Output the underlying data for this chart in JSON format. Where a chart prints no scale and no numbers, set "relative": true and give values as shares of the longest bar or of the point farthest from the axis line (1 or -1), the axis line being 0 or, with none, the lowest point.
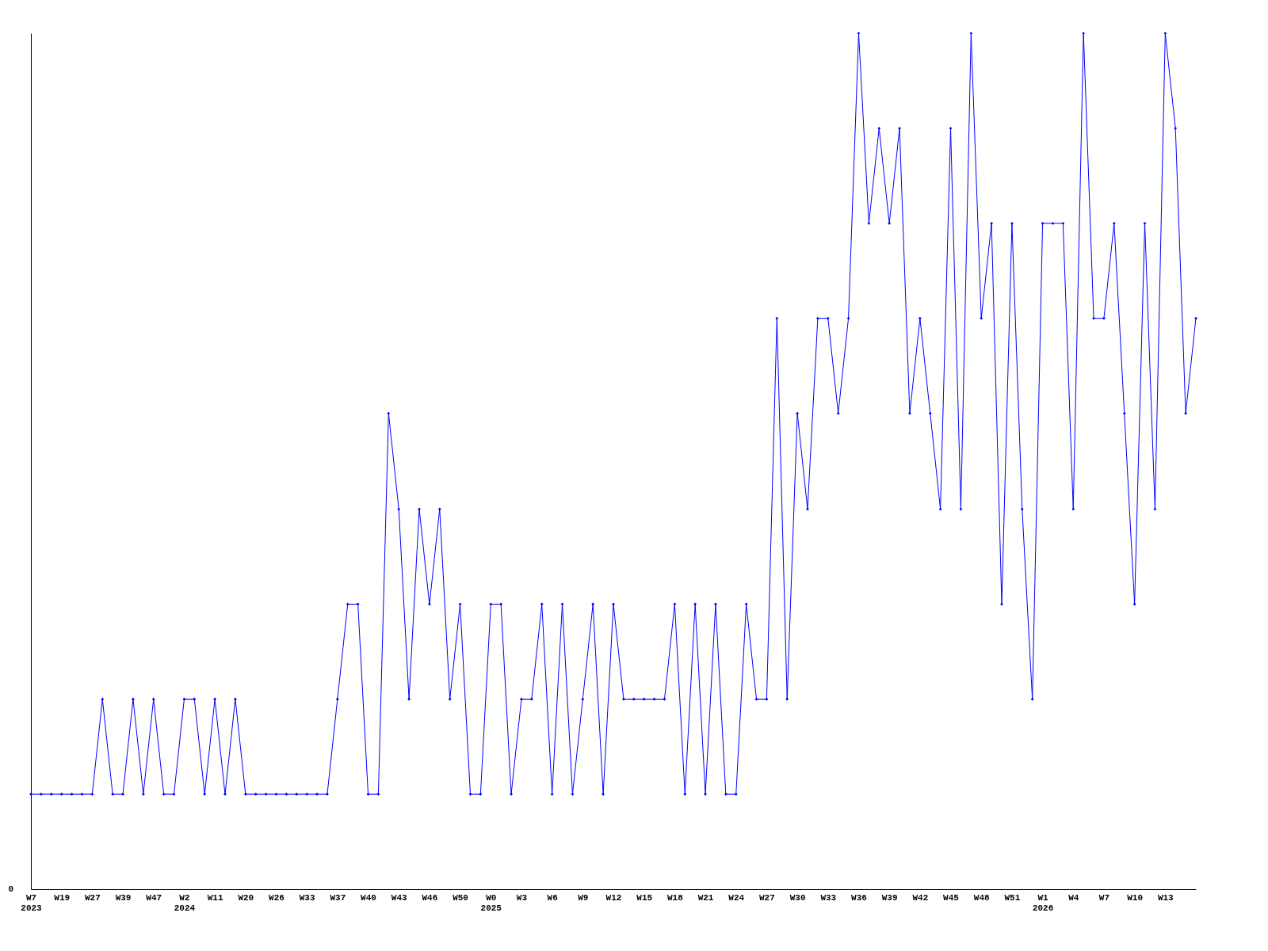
{
  "chart_data": {
    "type": "line",
    "relative": true,
    "color": "#0000ff",
    "marker": "diamond",
    "line_style": "solid",
    "grid": false,
    "annotations": [
      "0"
    ],
    "categories": [
      "W7\n2023",
      null,
      null,
      "W19",
      null,
      null,
      "W27",
      null,
      null,
      "W39",
      null,
      null,
      "W47",
      null,
      null,
      "W2\n2024",
      null,
      null,
      "W11",
      null,
      null,
      "W20",
      null,
      null,
      "W26",
      null,
      null,
      "W33",
      null,
      null,
      "W37",
      null,
      null,
      "W40",
      null,
      null,
      "W43",
      null,
      null,
      "W46",
      null,
      null,
      "W50",
      null,
      null,
      "W0\n2025",
      null,
      null,
      "W3",
      null,
      null,
      "W6",
      null,
      null,
      "W9",
      null,
      null,
      "W12",
      null,
      null,
      "W15",
      null,
      null,
      "W18",
      null,
      null,
      "W21",
      null,
      null,
      "W24",
      null,
      null,
      "W27",
      null,
      null,
      "W30",
      null,
      null,
      "W33",
      null,
      null,
      "W36",
      null,
      null,
      "W39",
      null,
      null,
      "W42",
      null,
      null,
      "W45",
      null,
      null,
      "W48",
      null,
      null,
      "W51",
      null,
      null,
      "W1\n2026",
      null,
      null,
      "W4",
      null,
      null,
      "W7",
      null,
      null,
      "W10",
      null,
      null,
      "W13",
      null,
      null,
      null
    ],
    "values": [
      0.111,
      0.111,
      0.111,
      0.111,
      0.111,
      0.111,
      0.111,
      0.222,
      0.111,
      0.111,
      0.222,
      0.111,
      0.222,
      0.111,
      0.111,
      0.222,
      0.222,
      0.111,
      0.222,
      0.111,
      0.222,
      0.111,
      0.111,
      0.111,
      0.111,
      0.111,
      0.111,
      0.111,
      0.111,
      0.111,
      0.222,
      0.333,
      0.333,
      0.111,
      0.111,
      0.556,
      0.444,
      0.222,
      0.444,
      0.333,
      0.444,
      0.222,
      0.333,
      0.111,
      0.111,
      0.333,
      0.333,
      0.111,
      0.222,
      0.222,
      0.333,
      0.111,
      0.333,
      0.111,
      0.222,
      0.333,
      0.111,
      0.333,
      0.222,
      0.222,
      0.222,
      0.222,
      0.222,
      0.333,
      0.111,
      0.333,
      0.111,
      0.333,
      0.111,
      0.111,
      0.333,
      0.222,
      0.222,
      0.667,
      0.222,
      0.556,
      0.444,
      0.667,
      0.667,
      0.556,
      0.667,
      1,
      0.778,
      0.889,
      0.778,
      0.889,
      0.556,
      0.667,
      0.556,
      0.444,
      0.889,
      0.444,
      1,
      0.667,
      0.778,
      0.333,
      0.778,
      0.444,
      0.222,
      0.778,
      0.778,
      0.778,
      0.444,
      1,
      0.667,
      0.667,
      0.778,
      0.556,
      0.333,
      0.778,
      0.444,
      1,
      0.889,
      0.556,
      0.667
    ]
  }
}
